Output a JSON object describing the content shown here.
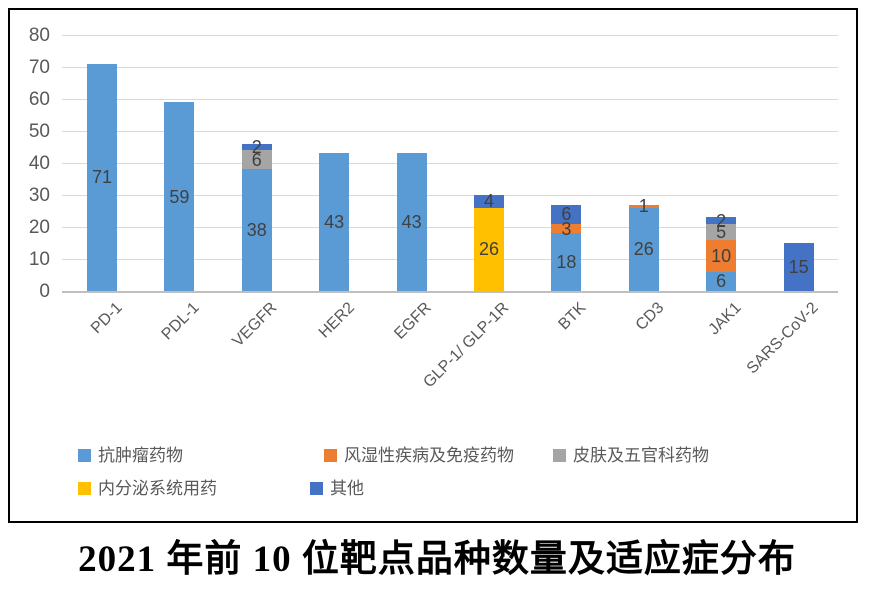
{
  "chart_data": {
    "type": "bar",
    "stacked": true,
    "title": "2021 年前 10 位靶点品种数量及适应症分布",
    "categories": [
      "PD-1",
      "PDL-1",
      "VEGFR",
      "HER2",
      "EGFR",
      "GLP-1/ GLP-1R",
      "BTK",
      "CD3",
      "JAK1",
      "SARS-CoV-2"
    ],
    "series": [
      {
        "name": "抗肿瘤药物",
        "color": "#5B9BD5",
        "values": [
          71,
          59,
          38,
          43,
          43,
          0,
          18,
          26,
          6,
          0
        ]
      },
      {
        "name": "风湿性疾病及免疫药物",
        "color": "#ED7D31",
        "values": [
          0,
          0,
          0,
          0,
          0,
          0,
          3,
          1,
          10,
          0
        ]
      },
      {
        "name": "皮肤及五官科药物",
        "color": "#A5A5A5",
        "values": [
          0,
          0,
          6,
          0,
          0,
          0,
          0,
          0,
          5,
          0
        ]
      },
      {
        "name": "内分泌系统用药",
        "color": "#FFC000",
        "values": [
          0,
          0,
          0,
          0,
          0,
          26,
          0,
          0,
          0,
          0
        ]
      },
      {
        "name": "其他",
        "color": "#4472C4",
        "values": [
          0,
          0,
          2,
          0,
          0,
          4,
          6,
          0,
          2,
          15
        ]
      }
    ],
    "bar_totals": [
      71,
      59,
      46,
      43,
      43,
      30,
      27,
      27,
      23,
      15
    ],
    "ylim": [
      0,
      80
    ],
    "ytick_step": 10,
    "yticks": [
      0,
      10,
      20,
      30,
      40,
      50,
      60,
      70,
      80
    ],
    "grid": true,
    "data_labels": true,
    "legend_position": "bottom",
    "legend_rows": [
      [
        0,
        1,
        2
      ],
      [
        3,
        4
      ]
    ],
    "label_color": "#404040",
    "axis_text_color": "#595959",
    "gridline_color": "#d9d9d9"
  }
}
